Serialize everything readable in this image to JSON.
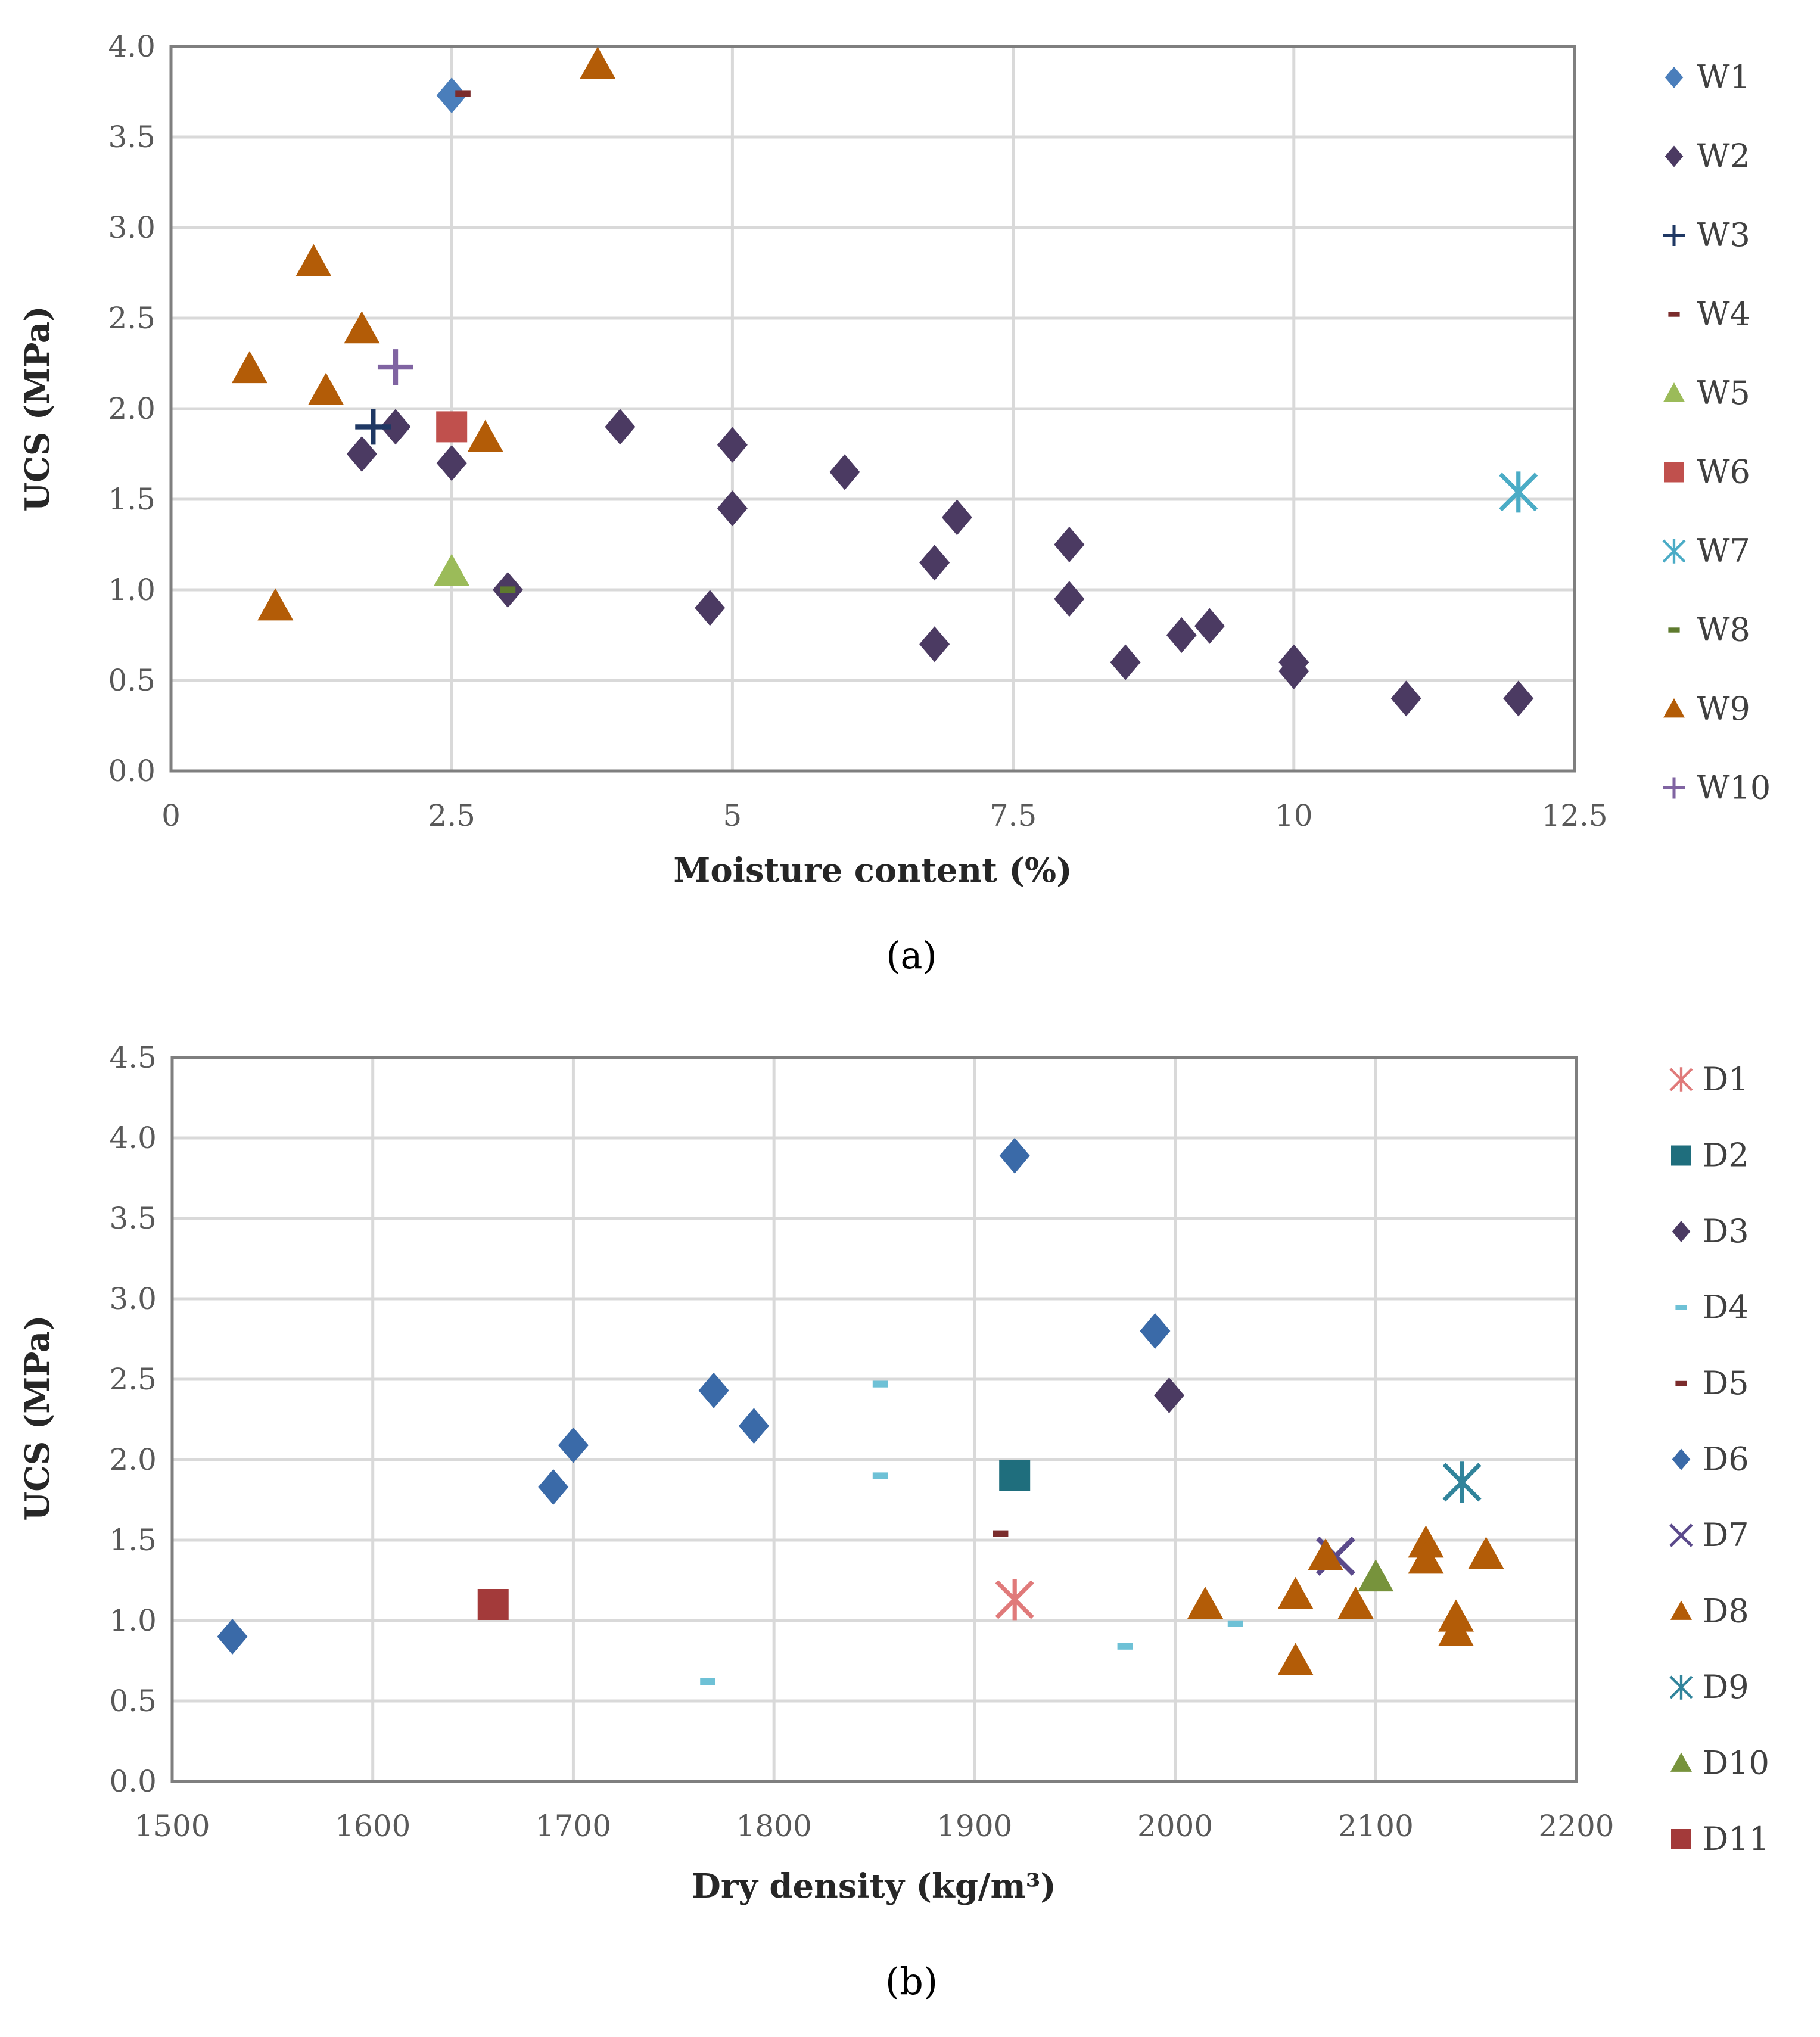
{
  "chart_data": [
    {
      "type": "scatter",
      "panel_label": "(a)",
      "xlabel": "Moisture content (%)",
      "ylabel": "UCS (MPa)",
      "xlim": [
        0,
        12.5
      ],
      "ylim": [
        0,
        4
      ],
      "xticks": [
        0,
        2.5,
        5,
        7.5,
        10,
        12.5
      ],
      "xtick_labels": [
        "0",
        "2.5",
        "5",
        "7.5",
        "10",
        "12.5"
      ],
      "yticks": [
        0,
        0.5,
        1,
        1.5,
        2,
        2.5,
        3,
        3.5,
        4
      ],
      "ytick_labels": [
        "0.0",
        "0.5",
        "1.0",
        "1.5",
        "2.0",
        "2.5",
        "3.0",
        "3.5",
        "4.0"
      ],
      "grid": true,
      "legend_position": "right",
      "series": [
        {
          "name": "W1",
          "marker": "diamond",
          "color": "#4A7EBB",
          "points": [
            [
              2.5,
              3.73
            ]
          ]
        },
        {
          "name": "W2",
          "marker": "diamond",
          "color": "#4B3A62",
          "points": [
            [
              1.7,
              1.75
            ],
            [
              2.0,
              1.9
            ],
            [
              2.5,
              1.7
            ],
            [
              3.0,
              1.0
            ],
            [
              4.0,
              1.9
            ],
            [
              4.8,
              0.9
            ],
            [
              5.0,
              1.8
            ],
            [
              5.0,
              1.45
            ],
            [
              6.0,
              1.65
            ],
            [
              6.8,
              1.15
            ],
            [
              6.8,
              0.7
            ],
            [
              7.0,
              1.4
            ],
            [
              8.0,
              1.25
            ],
            [
              8.0,
              0.95
            ],
            [
              8.5,
              0.6
            ],
            [
              9.0,
              0.75
            ],
            [
              9.25,
              0.8
            ],
            [
              10.0,
              0.6
            ],
            [
              10.0,
              0.55
            ],
            [
              11.0,
              0.4
            ],
            [
              12.0,
              0.4
            ]
          ]
        },
        {
          "name": "W3",
          "marker": "plus",
          "color": "#1F3864",
          "points": [
            [
              1.8,
              1.9
            ]
          ]
        },
        {
          "name": "W4",
          "marker": "dash",
          "color": "#7B2C2C",
          "points": [
            [
              2.6,
              3.74
            ]
          ]
        },
        {
          "name": "W5",
          "marker": "triangle",
          "color": "#9BBB59",
          "points": [
            [
              2.5,
              1.1
            ]
          ]
        },
        {
          "name": "W6",
          "marker": "square",
          "color": "#C0504D",
          "points": [
            [
              2.5,
              1.9
            ]
          ]
        },
        {
          "name": "W7",
          "marker": "star",
          "color": "#4BACC6",
          "points": [
            [
              12.0,
              1.54
            ]
          ]
        },
        {
          "name": "W8",
          "marker": "dash",
          "color": "#5E7A2E",
          "points": [
            [
              3.0,
              1.0
            ]
          ]
        },
        {
          "name": "W9",
          "marker": "triangle",
          "color": "#B35C07",
          "points": [
            [
              0.7,
              2.22
            ],
            [
              0.93,
              0.91
            ],
            [
              1.27,
              2.81
            ],
            [
              1.38,
              2.1
            ],
            [
              1.7,
              2.44
            ],
            [
              2.8,
              1.84
            ],
            [
              3.8,
              3.9
            ]
          ]
        },
        {
          "name": "W10",
          "marker": "plus",
          "color": "#8064A2",
          "points": [
            [
              2.0,
              2.23
            ]
          ]
        }
      ]
    },
    {
      "type": "scatter",
      "panel_label": "(b)",
      "xlabel": "Dry density (kg/m³)",
      "ylabel": "UCS (MPa)",
      "xlim": [
        1500,
        2200
      ],
      "ylim": [
        0,
        4.5
      ],
      "xticks": [
        1500,
        1600,
        1700,
        1800,
        1900,
        2000,
        2100,
        2200
      ],
      "xtick_labels": [
        "1500",
        "1600",
        "1700",
        "1800",
        "1900",
        "2000",
        "2100",
        "2200"
      ],
      "yticks": [
        0,
        0.5,
        1,
        1.5,
        2,
        2.5,
        3,
        3.5,
        4,
        4.5
      ],
      "ytick_labels": [
        "0.0",
        "0.5",
        "1.0",
        "1.5",
        "2.0",
        "2.5",
        "3.0",
        "3.5",
        "4.0",
        "4.5"
      ],
      "grid": true,
      "legend_position": "right",
      "series": [
        {
          "name": "D1",
          "marker": "star",
          "color": "#E07A7A",
          "points": [
            [
              1920,
              1.13
            ]
          ]
        },
        {
          "name": "D2",
          "marker": "square",
          "color": "#1F6E7D",
          "points": [
            [
              1920,
              1.9
            ]
          ]
        },
        {
          "name": "D3",
          "marker": "diamond",
          "color": "#4B3A62",
          "points": [
            [
              1997,
              2.4
            ]
          ]
        },
        {
          "name": "D4",
          "marker": "dash",
          "color": "#6EC1D6",
          "points": [
            [
              1853,
              2.47
            ],
            [
              1853,
              1.9
            ],
            [
              1767,
              0.62
            ],
            [
              1975,
              0.84
            ],
            [
              2030,
              0.98
            ]
          ]
        },
        {
          "name": "D5",
          "marker": "dash",
          "color": "#7B2C2C",
          "points": [
            [
              1913,
              1.54
            ]
          ]
        },
        {
          "name": "D6",
          "marker": "diamond",
          "color": "#3A6AA8",
          "points": [
            [
              1530,
              0.9
            ],
            [
              1690,
              1.83
            ],
            [
              1700,
              2.09
            ],
            [
              1770,
              2.43
            ],
            [
              1790,
              2.21
            ],
            [
              1920,
              3.89
            ],
            [
              1990,
              2.8
            ]
          ]
        },
        {
          "name": "D7",
          "marker": "x",
          "color": "#5B4A8B",
          "points": [
            [
              2080,
              1.4
            ]
          ]
        },
        {
          "name": "D8",
          "marker": "triangle",
          "color": "#B35C07",
          "points": [
            [
              2015,
              1.1
            ],
            [
              2060,
              1.16
            ],
            [
              2060,
              0.75
            ],
            [
              2075,
              1.4
            ],
            [
              2090,
              1.1
            ],
            [
              2125,
              1.48
            ],
            [
              2125,
              1.38
            ],
            [
              2140,
              1.02
            ],
            [
              2140,
              0.93
            ],
            [
              2155,
              1.41
            ]
          ]
        },
        {
          "name": "D9",
          "marker": "star",
          "color": "#31849B",
          "points": [
            [
              2143,
              1.86
            ]
          ]
        },
        {
          "name": "D10",
          "marker": "triangle",
          "color": "#77933C",
          "points": [
            [
              2100,
              1.27
            ]
          ]
        },
        {
          "name": "D11",
          "marker": "square",
          "color": "#A33A3A",
          "points": [
            [
              1660,
              1.1
            ]
          ]
        }
      ]
    }
  ]
}
